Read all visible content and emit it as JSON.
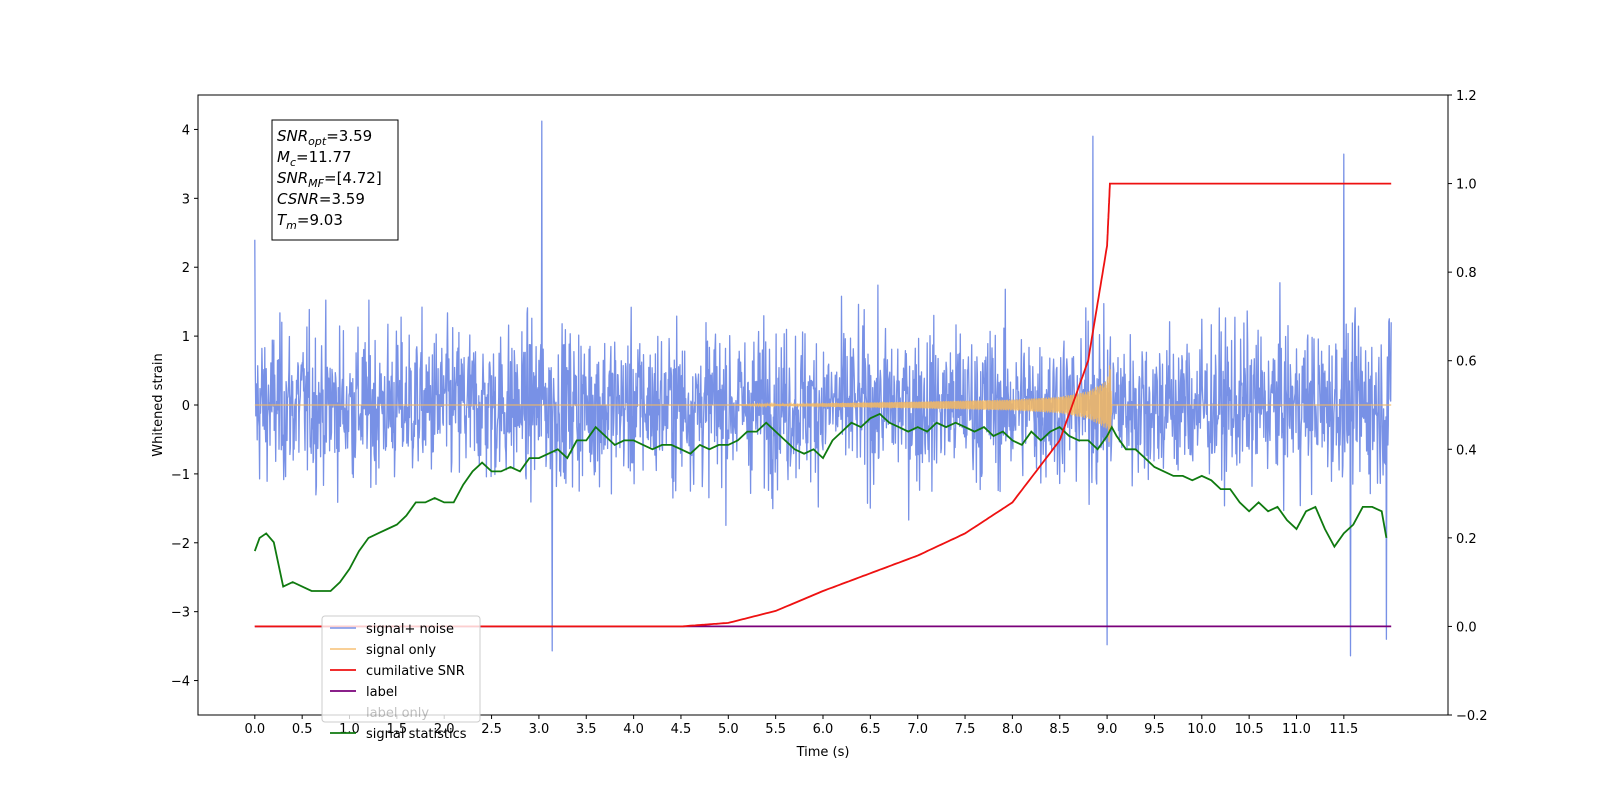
{
  "chart_data": {
    "type": "line",
    "xlabel": "Time (s)",
    "ylabel": "Whitened strain",
    "xlim": [
      -0.6,
      12.6
    ],
    "ylim": [
      -4.5,
      4.5
    ],
    "y2lim": [
      -0.2,
      1.2
    ],
    "x_ticks": [
      0.0,
      0.5,
      1.0,
      1.5,
      2.0,
      2.5,
      3.0,
      3.5,
      4.0,
      4.5,
      5.0,
      5.5,
      6.0,
      6.5,
      7.0,
      7.5,
      8.0,
      8.5,
      9.0,
      9.5,
      10.0,
      10.5,
      11.0,
      11.5
    ],
    "x_tick_labels": [
      "0.0",
      "0.5",
      "1.0",
      "1.5",
      "2.0",
      "2.5",
      "3.0",
      "3.5",
      "4.0",
      "4.5",
      "5.0",
      "5.5",
      "6.0",
      "6.5",
      "7.0",
      "7.5",
      "8.0",
      "8.5",
      "9.0",
      "9.5",
      "10.0",
      "10.5",
      "11.0",
      "11.5"
    ],
    "y_ticks": [
      -4,
      -3,
      -2,
      -1,
      0,
      1,
      2,
      3,
      4
    ],
    "y_tick_labels": [
      "−4",
      "−3",
      "−2",
      "−1",
      "0",
      "1",
      "2",
      "3",
      "4"
    ],
    "y2_ticks": [
      -0.2,
      0.0,
      0.2,
      0.4,
      0.6,
      0.8,
      1.0,
      1.2
    ],
    "y2_tick_labels": [
      "−0.2",
      "0.0",
      "0.2",
      "0.4",
      "0.6",
      "0.8",
      "1.0",
      "1.2"
    ],
    "grid": false,
    "legend_position": "bottom-left",
    "colors": {
      "noise": "#7891e6",
      "signal": "#f5b860",
      "snr": "#ee1111",
      "label": "#7a007a",
      "stats": "#0f7a0f"
    },
    "series": [
      {
        "name": "signal+ noise",
        "axis": "left",
        "style": "noise band approx. -2.5 to 2.5 with spikes",
        "x": [
          0.0,
          3.03,
          3.14,
          8.85,
          9.0,
          11.5,
          11.57,
          11.95,
          12.0
        ],
        "values": [
          2.4,
          4.12,
          -3.57,
          3.9,
          -3.48,
          3.64,
          -3.64,
          -3.4,
          1.2
        ]
      },
      {
        "name": "signal only",
        "axis": "left",
        "x": [
          0.0,
          5.0,
          7.0,
          8.0,
          8.5,
          8.8,
          9.0,
          9.03,
          9.05,
          12.0
        ],
        "values": [
          0.0,
          0.0,
          0.05,
          0.08,
          0.12,
          0.2,
          0.35,
          0.65,
          0.0,
          0.0
        ]
      },
      {
        "name": "cumilative SNR",
        "axis": "right",
        "x": [
          0.0,
          4.5,
          5.0,
          5.5,
          6.0,
          6.5,
          7.0,
          7.5,
          8.0,
          8.5,
          8.8,
          9.0,
          9.03,
          12.0
        ],
        "values": [
          0.0,
          0.0,
          0.008,
          0.035,
          0.08,
          0.12,
          0.16,
          0.21,
          0.28,
          0.42,
          0.6,
          0.86,
          1.0,
          1.0
        ]
      },
      {
        "name": "label",
        "axis": "right",
        "x": [
          0.0,
          12.0
        ],
        "values": [
          0.0,
          0.0
        ]
      },
      {
        "name": "label only",
        "axis": "right",
        "x": [],
        "values": []
      },
      {
        "name": "signal statistics",
        "axis": "right",
        "x": [
          0.0,
          0.05,
          0.12,
          0.2,
          0.3,
          0.4,
          0.5,
          0.6,
          0.7,
          0.8,
          0.9,
          1.0,
          1.1,
          1.2,
          1.3,
          1.4,
          1.5,
          1.6,
          1.7,
          1.8,
          1.9,
          2.0,
          2.1,
          2.2,
          2.3,
          2.4,
          2.5,
          2.6,
          2.7,
          2.8,
          2.9,
          3.0,
          3.1,
          3.2,
          3.3,
          3.4,
          3.5,
          3.6,
          3.7,
          3.8,
          3.9,
          4.0,
          4.1,
          4.2,
          4.3,
          4.4,
          4.5,
          4.6,
          4.7,
          4.8,
          4.9,
          5.0,
          5.1,
          5.2,
          5.3,
          5.4,
          5.5,
          5.6,
          5.7,
          5.8,
          5.9,
          6.0,
          6.1,
          6.2,
          6.3,
          6.4,
          6.5,
          6.6,
          6.7,
          6.8,
          6.9,
          7.0,
          7.1,
          7.2,
          7.3,
          7.4,
          7.5,
          7.6,
          7.7,
          7.8,
          7.9,
          8.0,
          8.1,
          8.2,
          8.3,
          8.4,
          8.5,
          8.6,
          8.7,
          8.8,
          8.9,
          9.0,
          9.05,
          9.1,
          9.2,
          9.3,
          9.4,
          9.5,
          9.6,
          9.7,
          9.8,
          9.9,
          10.0,
          10.1,
          10.2,
          10.3,
          10.4,
          10.5,
          10.6,
          10.7,
          10.8,
          10.9,
          11.0,
          11.1,
          11.2,
          11.3,
          11.4,
          11.5,
          11.6,
          11.7,
          11.8,
          11.9,
          11.95
        ],
        "values": [
          0.17,
          0.2,
          0.21,
          0.19,
          0.09,
          0.1,
          0.09,
          0.08,
          0.08,
          0.08,
          0.1,
          0.13,
          0.17,
          0.2,
          0.21,
          0.22,
          0.23,
          0.25,
          0.28,
          0.28,
          0.29,
          0.28,
          0.28,
          0.32,
          0.35,
          0.37,
          0.35,
          0.35,
          0.36,
          0.35,
          0.38,
          0.38,
          0.39,
          0.4,
          0.38,
          0.42,
          0.42,
          0.45,
          0.43,
          0.41,
          0.42,
          0.42,
          0.41,
          0.4,
          0.41,
          0.41,
          0.4,
          0.39,
          0.41,
          0.4,
          0.41,
          0.41,
          0.42,
          0.44,
          0.44,
          0.46,
          0.44,
          0.42,
          0.4,
          0.39,
          0.4,
          0.38,
          0.42,
          0.44,
          0.46,
          0.45,
          0.47,
          0.48,
          0.46,
          0.45,
          0.44,
          0.45,
          0.44,
          0.46,
          0.45,
          0.46,
          0.45,
          0.44,
          0.45,
          0.43,
          0.44,
          0.42,
          0.41,
          0.44,
          0.42,
          0.44,
          0.45,
          0.43,
          0.42,
          0.42,
          0.4,
          0.43,
          0.45,
          0.43,
          0.4,
          0.4,
          0.38,
          0.36,
          0.35,
          0.34,
          0.34,
          0.33,
          0.34,
          0.33,
          0.31,
          0.31,
          0.28,
          0.26,
          0.28,
          0.26,
          0.27,
          0.24,
          0.22,
          0.26,
          0.27,
          0.22,
          0.18,
          0.21,
          0.23,
          0.27,
          0.27,
          0.26,
          0.2
        ]
      }
    ],
    "annotation": {
      "lines": [
        {
          "main": "SNR",
          "sub": "opt",
          "value": "=3.59"
        },
        {
          "main": "M",
          "sub": "c",
          "value": "=11.77"
        },
        {
          "main": "SNR",
          "sub": "MF",
          "value": "=[4.72]"
        },
        {
          "main": "CSNR",
          "sub": "",
          "value": "=3.59"
        },
        {
          "main": "T",
          "sub": "m",
          "value": "=9.03"
        }
      ]
    }
  }
}
